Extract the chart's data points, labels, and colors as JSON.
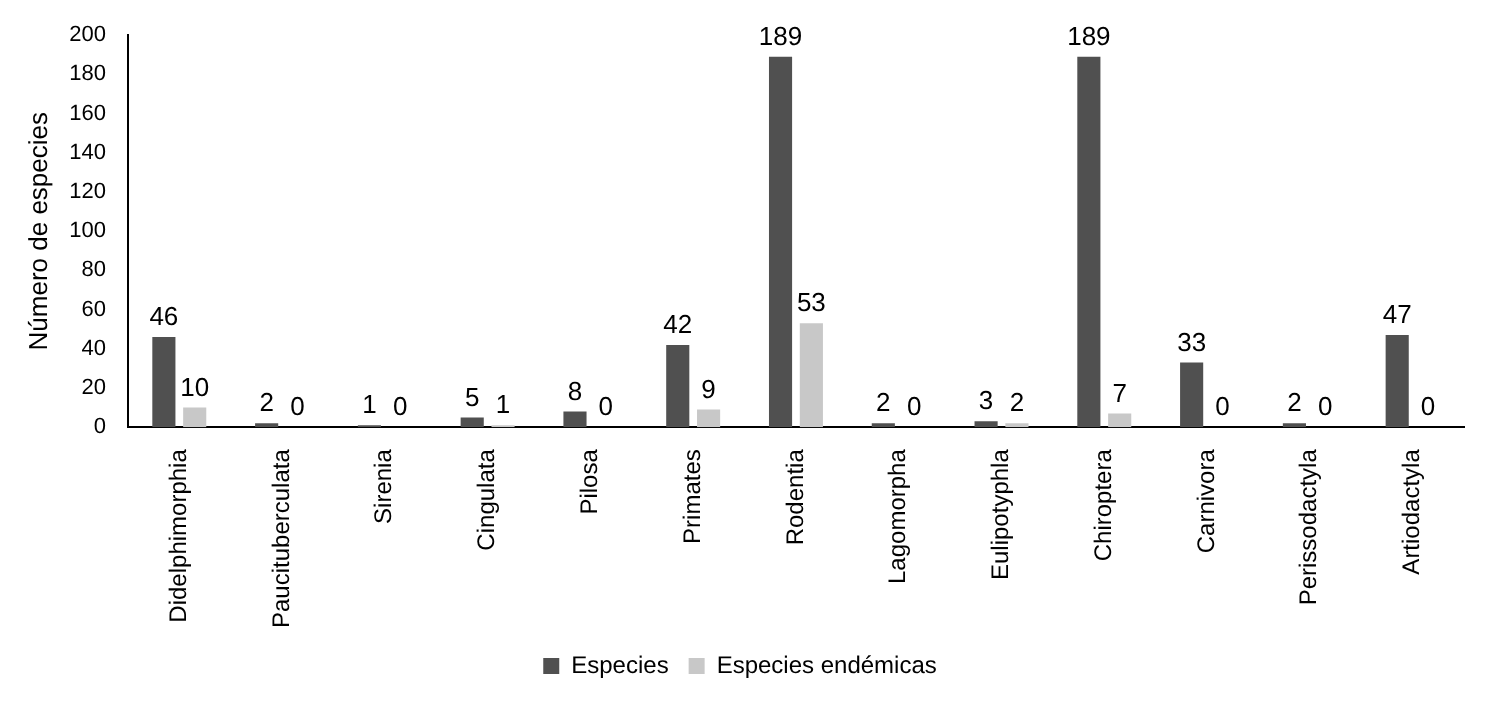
{
  "chart_data": {
    "type": "bar",
    "ylabel": "Número de especies",
    "categories": [
      "Didelphimorphia",
      "Paucituberculata",
      "Sirenia",
      "Cingulata",
      "Pilosa",
      "Primates",
      "Rodentia",
      "Lagomorpha",
      "Eulipotyphla",
      "Chiroptera",
      "Carnivora",
      "Perissodactyla",
      "Artiodactyla"
    ],
    "series": [
      {
        "name": "Especies",
        "color": "#505050",
        "values": [
          46,
          2,
          1,
          5,
          8,
          42,
          189,
          2,
          3,
          189,
          33,
          2,
          47
        ]
      },
      {
        "name": "Especies endémicas",
        "color": "#c8c8c8",
        "values": [
          10,
          0,
          0,
          1,
          0,
          9,
          53,
          0,
          2,
          7,
          0,
          0,
          0
        ]
      }
    ],
    "ylim": [
      0,
      200
    ],
    "yticks": [
      0,
      20,
      40,
      60,
      80,
      100,
      120,
      140,
      160,
      180,
      200
    ],
    "grid": false,
    "legend": "bottom",
    "data_labels": true
  }
}
